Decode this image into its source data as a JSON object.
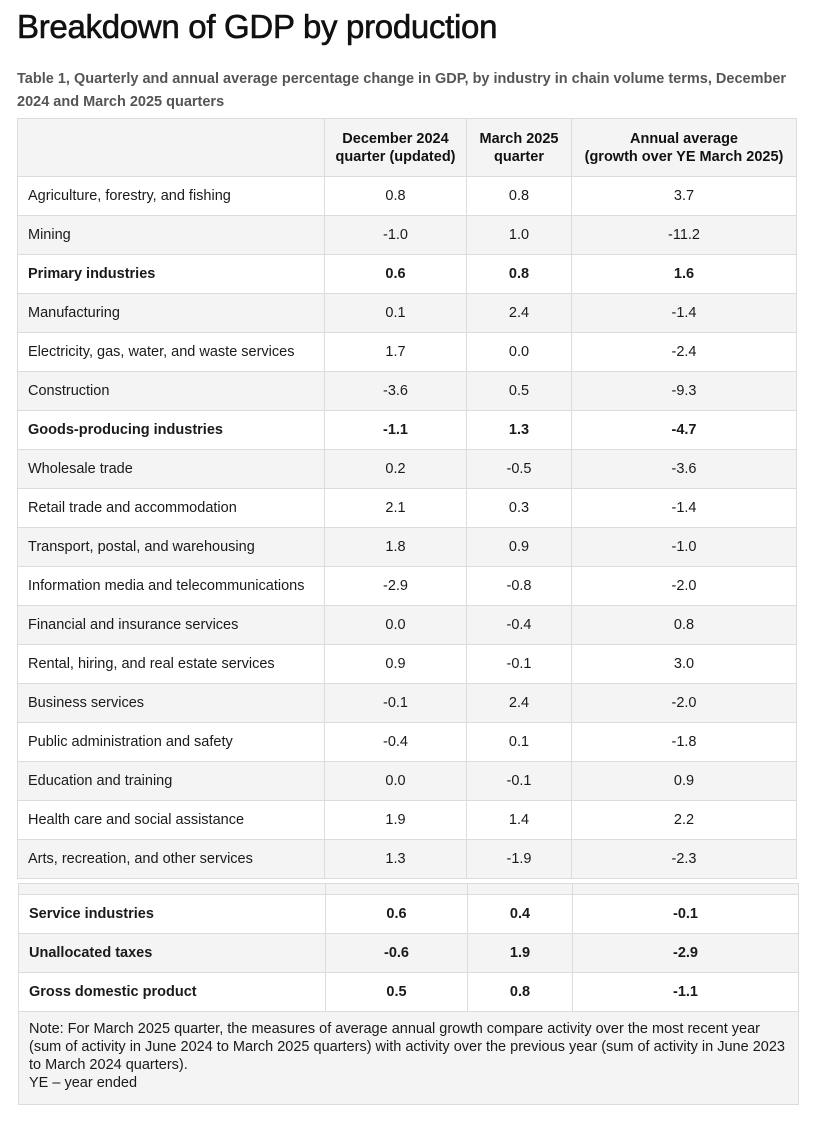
{
  "page": {
    "title": "Breakdown of GDP by production",
    "caption": "Table 1, Quarterly and annual average percentage change in GDP, by industry in chain volume terms, December 2024 and March 2025 quarters"
  },
  "table": {
    "headers": {
      "industry": "",
      "dec2024_line1": "December 2024",
      "dec2024_line2": "quarter (updated)",
      "mar2025_line1": "March 2025",
      "mar2025_line2": "quarter",
      "annual_line1": "Annual average",
      "annual_line2": "(growth over YE March 2025)"
    },
    "rows": [
      {
        "industry": "Agriculture, forestry, and fishing",
        "dec2024": "0.8",
        "mar2025": "0.8",
        "annual": "3.7",
        "bold": false
      },
      {
        "industry": "Mining",
        "dec2024": "-1.0",
        "mar2025": "1.0",
        "annual": "-11.2",
        "bold": false
      },
      {
        "industry": "Primary industries",
        "dec2024": "0.6",
        "mar2025": "0.8",
        "annual": "1.6",
        "bold": true
      },
      {
        "industry": "Manufacturing",
        "dec2024": "0.1",
        "mar2025": "2.4",
        "annual": "-1.4",
        "bold": false
      },
      {
        "industry": "Electricity, gas, water, and waste services",
        "dec2024": "1.7",
        "mar2025": "0.0",
        "annual": "-2.4",
        "bold": false
      },
      {
        "industry": "Construction",
        "dec2024": "-3.6",
        "mar2025": "0.5",
        "annual": "-9.3",
        "bold": false
      },
      {
        "industry": "Goods-producing industries",
        "dec2024": "-1.1",
        "mar2025": "1.3",
        "annual": "-4.7",
        "bold": true
      },
      {
        "industry": "Wholesale trade",
        "dec2024": "0.2",
        "mar2025": "-0.5",
        "annual": "-3.6",
        "bold": false
      },
      {
        "industry": "Retail trade and accommodation",
        "dec2024": "2.1",
        "mar2025": "0.3",
        "annual": "-1.4",
        "bold": false
      },
      {
        "industry": "Transport, postal, and warehousing",
        "dec2024": "1.8",
        "mar2025": "0.9",
        "annual": "-1.0",
        "bold": false
      },
      {
        "industry": "Information media and telecommunications",
        "dec2024": "-2.9",
        "mar2025": "-0.8",
        "annual": "-2.0",
        "bold": false
      },
      {
        "industry": "Financial and insurance services",
        "dec2024": "0.0",
        "mar2025": "-0.4",
        "annual": "0.8",
        "bold": false
      },
      {
        "industry": "Rental, hiring, and real estate services",
        "dec2024": "0.9",
        "mar2025": "-0.1",
        "annual": "3.0",
        "bold": false
      },
      {
        "industry": "Business services",
        "dec2024": "-0.1",
        "mar2025": "2.4",
        "annual": "-2.0",
        "bold": false
      },
      {
        "industry": "Public administration and safety",
        "dec2024": "-0.4",
        "mar2025": "0.1",
        "annual": "-1.8",
        "bold": false
      },
      {
        "industry": "Education and training",
        "dec2024": "0.0",
        "mar2025": "-0.1",
        "annual": "0.9",
        "bold": false
      },
      {
        "industry": "Health care and social assistance",
        "dec2024": "1.9",
        "mar2025": "1.4",
        "annual": "2.2",
        "bold": false
      },
      {
        "industry": "Arts, recreation, and other services",
        "dec2024": "1.3",
        "mar2025": "-1.9",
        "annual": "-2.3",
        "bold": false
      }
    ],
    "summary_rows": [
      {
        "industry": "Service industries",
        "dec2024": "0.6",
        "mar2025": "0.4",
        "annual": "-0.1",
        "bold": true
      },
      {
        "industry": "Unallocated taxes",
        "dec2024": "-0.6",
        "mar2025": "1.9",
        "annual": "-2.9",
        "bold": true
      },
      {
        "industry": "Gross domestic product",
        "dec2024": "0.5",
        "mar2025": "0.8",
        "annual": "-1.1",
        "bold": true
      }
    ],
    "note_lines": [
      "Note: For March 2025 quarter, the measures of average annual growth compare activity over the most recent year (sum of activity in June 2024 to March 2025 quarters) with activity over the previous year (sum of activity in June 2023 to March 2024 quarters).",
      "YE – year ended"
    ]
  }
}
